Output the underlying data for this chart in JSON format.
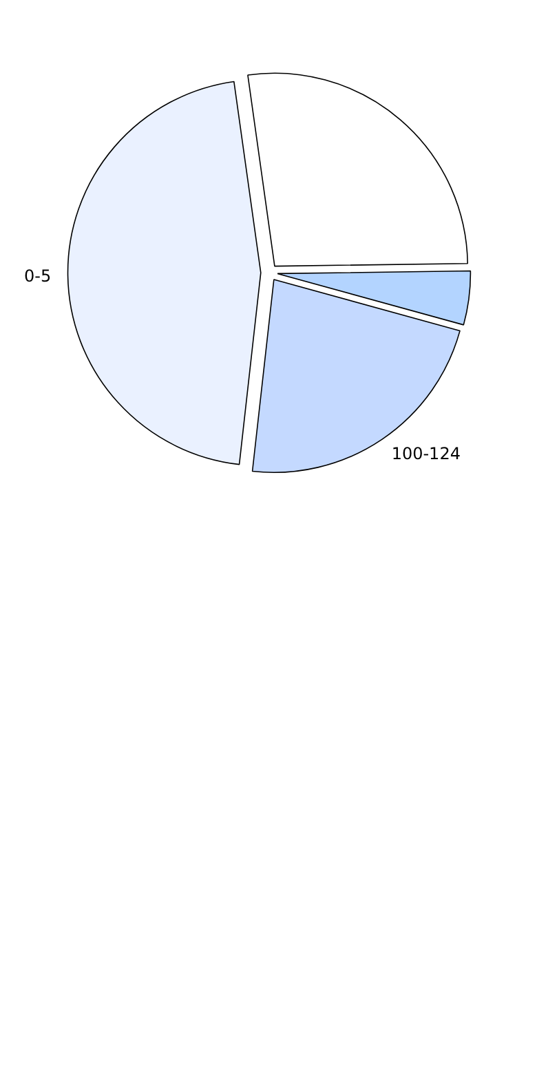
{
  "chart_data": {
    "type": "pie",
    "categories": [
      null,
      null,
      "100-124",
      "0-5"
    ],
    "values": [
      27,
      4.5,
      22.5,
      46
    ],
    "colors": [
      "#ffffff",
      "#b3d4ff",
      "#c4d9ff",
      "#eaf1ff"
    ]
  }
}
